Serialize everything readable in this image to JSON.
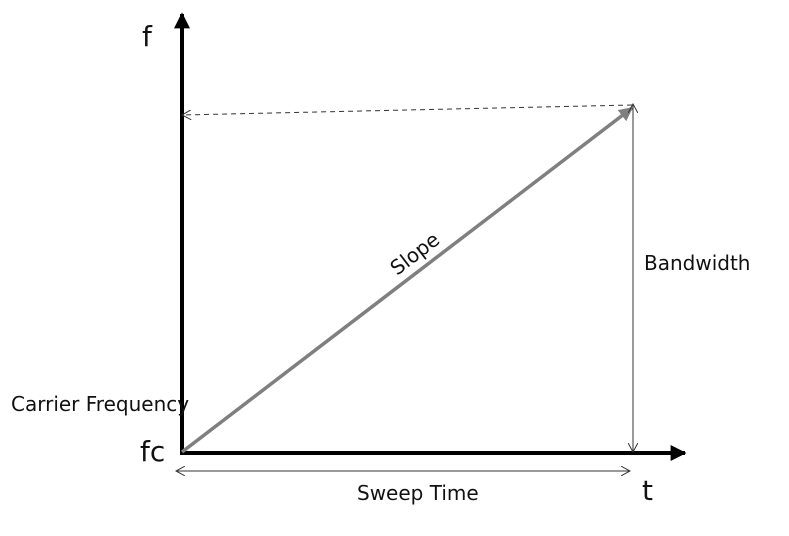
{
  "diagram": {
    "y_axis_label": "f",
    "x_axis_label": "t",
    "origin_label": "fc",
    "carrier_label": "Carrier Frequency",
    "slope_label": "Slope",
    "bandwidth_label": "Bandwidth",
    "sweep_time_label": "Sweep Time",
    "colors": {
      "axes": "#000000",
      "chirp_line": "#7f7f7f",
      "dimension_lines": "#333333"
    }
  }
}
